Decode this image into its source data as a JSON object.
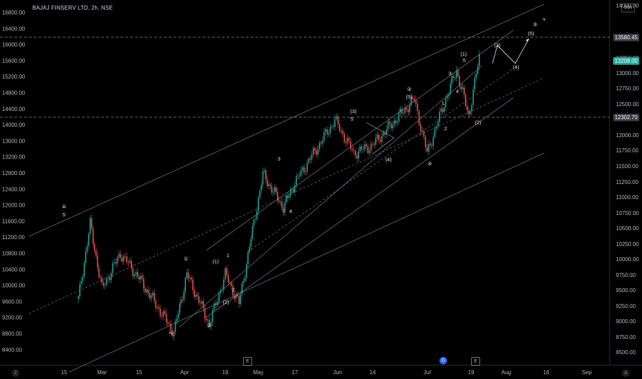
{
  "header": {
    "title": "BAJAJ FINSERV LTD, 2h, NSE",
    "currency_badge": "INR"
  },
  "left_axis": {
    "labels": [
      "16800.00",
      "16400.00",
      "16000.00",
      "15600.00",
      "15200.00",
      "14800.00",
      "14400.00",
      "14000.00",
      "13600.00",
      "13200.00",
      "12800.00",
      "12400.00",
      "12000.00",
      "11600.00",
      "11200.00",
      "10800.00",
      "10400.00",
      "10000.00",
      "9600.00",
      "9200.00",
      "8800.00",
      "8400.00"
    ]
  },
  "right_axis": {
    "labels": [
      "14000.00",
      "13500.00",
      "13250.00",
      "13000.00",
      "12750.00",
      "12500.00",
      "12250.00",
      "12000.00",
      "11750.00",
      "11500.00",
      "11250.00",
      "11000.00",
      "10750.00",
      "10500.00",
      "10250.00",
      "10000.00",
      "9750.00",
      "9500.00",
      "9250.00",
      "9000.00",
      "8750.00",
      "8500.00"
    ]
  },
  "price_tags": {
    "level_high": "13580.45",
    "last_price": "13208.00",
    "level_low": "12302.70"
  },
  "time_axis": {
    "labels": [
      "15",
      "Mar",
      "15",
      "Apr",
      "19",
      "May",
      "17",
      "Jun",
      "14",
      "Jul",
      "19",
      "Aug",
      "16",
      "Sep"
    ]
  },
  "events": [
    "E",
    "D",
    "E"
  ],
  "corner_left": "Z",
  "corner_right": "A",
  "colors": {
    "up": "#26a69a",
    "down": "#ef5350",
    "last_price": "#26a69a",
    "level_tag": "#363a45",
    "dividend": "#2962ff"
  },
  "wave_labels": [
    "iii",
    "5",
    "iv",
    "①",
    "②",
    "(1)",
    "1",
    "2",
    "(2)",
    "3",
    "4",
    "(3)",
    "5",
    "(4)",
    "③",
    "(5)",
    "1",
    "2",
    "④",
    "3",
    "4",
    "(1)",
    "5",
    "(2)",
    "(3)",
    "(4)",
    "(5)",
    "⑤",
    "v"
  ],
  "chart_data": {
    "type": "candlestick",
    "title": "BAJAJ FINSERV LTD, 2h, NSE",
    "ylim": [
      8200,
      16900
    ],
    "y_secondary": [
      8400,
      14100
    ],
    "horizontal_levels": [
      13580.45,
      12302.7
    ],
    "last_price": 13208.0,
    "path_points": [
      {
        "x": "Feb 01",
        "y": 9800
      },
      {
        "x": "Feb 15",
        "y": 11600
      },
      {
        "x": "Mar 01",
        "y": 10050
      },
      {
        "x": "Mar 08",
        "y": 10900
      },
      {
        "x": "Mar 15",
        "y": 10300
      },
      {
        "x": "Mar 28",
        "y": 9000
      },
      {
        "x": "Apr 02",
        "y": 10400
      },
      {
        "x": "Apr 12",
        "y": 9200
      },
      {
        "x": "Apr 19",
        "y": 10400
      },
      {
        "x": "Apr 24",
        "y": 9700
      },
      {
        "x": "May 03",
        "y": 12800
      },
      {
        "x": "May 12",
        "y": 12000
      },
      {
        "x": "May 17",
        "y": 12600
      },
      {
        "x": "Jun 01",
        "y": 14100
      },
      {
        "x": "Jun 08",
        "y": 13300
      },
      {
        "x": "Jun 15",
        "y": 13500
      },
      {
        "x": "Jun 28",
        "y": 14600
      },
      {
        "x": "Jul 02",
        "y": 13300
      },
      {
        "x": "Jul 09",
        "y": 14500
      },
      {
        "x": "Jul 14",
        "y": 15300
      },
      {
        "x": "Jul 19",
        "y": 14200
      },
      {
        "x": "Jul 23",
        "y": 15600
      }
    ]
  }
}
